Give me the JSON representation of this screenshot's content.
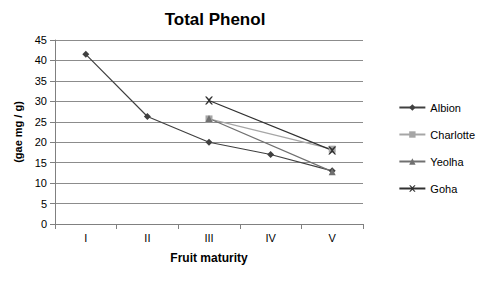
{
  "chart_data": {
    "type": "line",
    "title": "Total Phenol",
    "x_label": "Fruit maturity",
    "y_label": "(gae mg / g)",
    "categories": [
      "I",
      "II",
      "III",
      "IV",
      "V"
    ],
    "series": [
      {
        "name": "Albion",
        "color": "#404040",
        "marker": "diamond",
        "values": [
          41.5,
          26.3,
          20,
          17,
          13
        ]
      },
      {
        "name": "Charlotte",
        "color": "#a6a6a6",
        "marker": "square",
        "values": [
          null,
          null,
          25.7,
          null,
          18.3
        ]
      },
      {
        "name": "Yeolha",
        "color": "#707070",
        "marker": "triangle",
        "values": [
          null,
          null,
          25.8,
          null,
          12.8
        ]
      },
      {
        "name": "Goha",
        "color": "#303030",
        "marker": "x",
        "values": [
          null,
          null,
          30.2,
          null,
          18
        ]
      }
    ],
    "ylim": [
      0,
      45
    ],
    "yticks": [
      0,
      5,
      10,
      15,
      20,
      25,
      30,
      35,
      40,
      45
    ],
    "grid": true,
    "legend": "right"
  }
}
